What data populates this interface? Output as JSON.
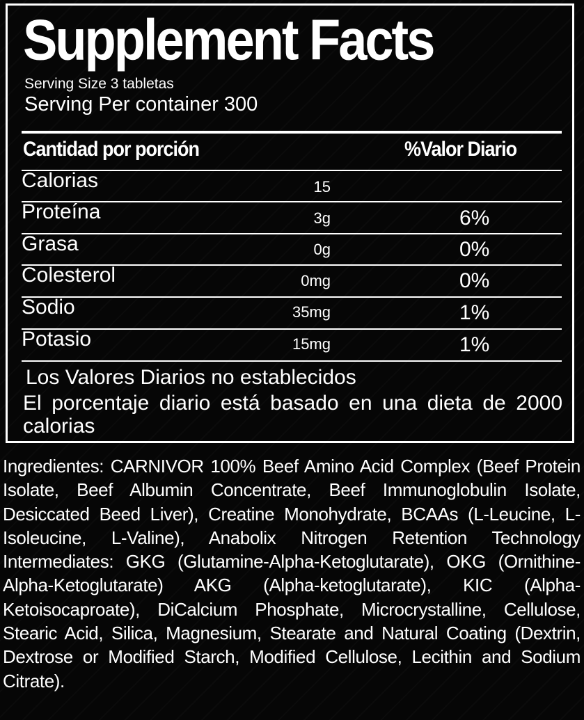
{
  "facts": {
    "title": "Supplement Facts",
    "serving_size": "Serving Size 3 tabletas",
    "serving_per_container": "Serving Per container 300",
    "header_left": "Cantidad por porción",
    "header_right": "%Valor Diario",
    "rows": [
      {
        "label": "Calorias",
        "amount": "15",
        "dv": ""
      },
      {
        "label": "Proteína",
        "amount": "3g",
        "dv": "6%"
      },
      {
        "label": "Grasa",
        "amount": "0g",
        "dv": "0%"
      },
      {
        "label": "Colesterol",
        "amount": "0mg",
        "dv": "0%"
      },
      {
        "label": "Sodio",
        "amount": "35mg",
        "dv": "1%"
      },
      {
        "label": "Potasio",
        "amount": "15mg",
        "dv": "1%"
      }
    ],
    "note_1": "Los Valores Diarios no establecidos",
    "note_2": "El porcentaje diario está basado en una dieta de 2000 calorias"
  },
  "ingredients": "Ingredientes: CARNIVOR 100% Beef Amino Acid Complex (Beef Protein Isolate, Beef Albumin Concentrate, Beef Immunoglobulin Isolate, Desiccated Beed Liver), Creatine Monohydrate, BCAAs (L-Leucine, L-Isoleucine, L-Valine), Anabolix Nitrogen Retention Technology Intermediates: GKG (Glutamine-Alpha-Ketoglutarate), OKG (Ornithine-Alpha-Ketoglutarate) AKG (Alpha-ketoglutarate), KIC (Alpha-Ketoisocaproate), DiCalcium Phosphate, Microcrystalline, Cellulose, Stearic Acid, Silica, Magnesium, Stearate and Natural Coating (Dextrin, Dextrose or Modified Starch, Modified Cellulose, Lecithin and Sodium Citrate)."
}
